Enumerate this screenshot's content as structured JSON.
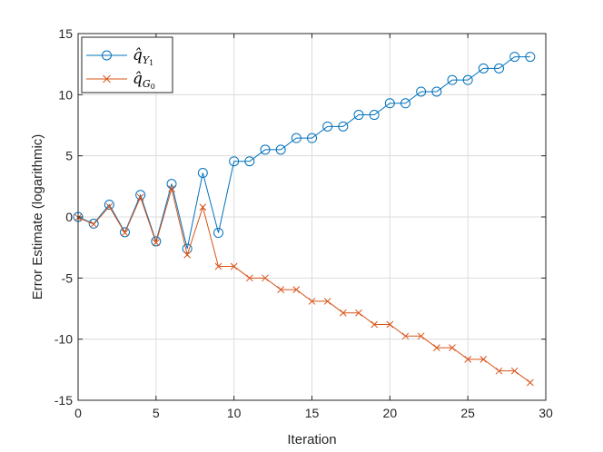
{
  "chart_data": {
    "type": "line",
    "title": "",
    "xlabel": "Iteration",
    "ylabel": "Error Estimate (logarithmic)",
    "xlim": [
      0,
      30
    ],
    "ylim": [
      -15,
      15
    ],
    "xticks": [
      0,
      5,
      10,
      15,
      20,
      25,
      30
    ],
    "yticks": [
      -15,
      -10,
      -5,
      0,
      5,
      10,
      15
    ],
    "xtick_labels": [
      "0",
      "5",
      "10",
      "15",
      "20",
      "25",
      "30"
    ],
    "ytick_labels": [
      "-15",
      "-10",
      "-5",
      "0",
      "5",
      "10",
      "15"
    ],
    "grid": true,
    "legend_position": "top-left",
    "x": [
      0,
      1,
      2,
      3,
      4,
      5,
      6,
      7,
      8,
      9,
      10,
      11,
      12,
      13,
      14,
      15,
      16,
      17,
      18,
      19,
      20,
      21,
      22,
      23,
      24,
      25,
      26,
      27,
      28,
      29
    ],
    "series": [
      {
        "name": "q̂_{Y1}",
        "legend_main": "q̂",
        "legend_sub": "Y",
        "legend_subsub": "1",
        "color": "#0072BD",
        "marker": "circle",
        "values": [
          0.0,
          -0.55,
          1.0,
          -1.25,
          1.8,
          -2.0,
          2.7,
          -2.6,
          3.6,
          -1.3,
          4.55,
          4.55,
          5.5,
          5.5,
          6.45,
          6.45,
          7.4,
          7.4,
          8.35,
          8.35,
          9.3,
          9.3,
          10.25,
          10.25,
          11.2,
          11.2,
          12.15,
          12.15,
          13.1,
          13.1
        ]
      },
      {
        "name": "q̂_{G0}",
        "legend_main": "q̂",
        "legend_sub": "G",
        "legend_subsub": "0",
        "color": "#D95319",
        "marker": "x",
        "values": [
          -0.05,
          -0.6,
          0.85,
          -1.3,
          1.6,
          -2.1,
          2.3,
          -3.1,
          0.8,
          -4.05,
          -4.05,
          -5.0,
          -5.0,
          -5.95,
          -5.95,
          -6.9,
          -6.9,
          -7.85,
          -7.85,
          -8.8,
          -8.8,
          -9.75,
          -9.75,
          -10.7,
          -10.7,
          -11.65,
          -11.65,
          -12.6,
          -12.6,
          -13.55
        ]
      }
    ]
  }
}
